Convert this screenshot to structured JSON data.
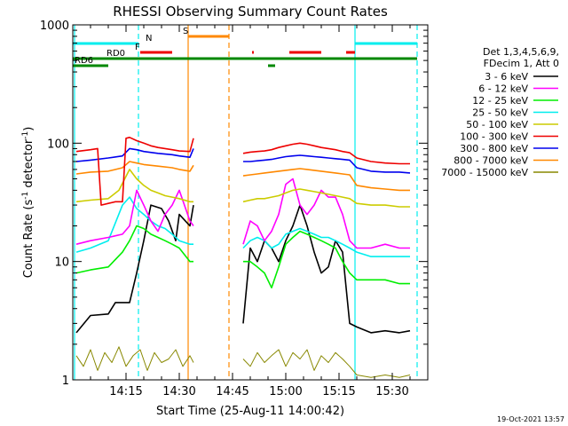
{
  "chart_data": {
    "type": "line",
    "title": "RHESSI Observing Summary Count Rates",
    "xlabel": "Start Time (25-Aug-11 14:00:42)",
    "ylabel_main": "Count Rate (s",
    "ylabel_sup1": "-1",
    "ylabel_mid": " detector",
    "ylabel_sup2": "-1",
    "ylabel_end": ")",
    "yscale": "log",
    "ylim": [
      1,
      1000
    ],
    "xlim_minutes": [
      0,
      100
    ],
    "x_ticks": [
      {
        "m": 15,
        "label": "14:15"
      },
      {
        "m": 30,
        "label": "14:30"
      },
      {
        "m": 45,
        "label": "14:45"
      },
      {
        "m": 60,
        "label": "15:00"
      },
      {
        "m": 75,
        "label": "15:15"
      },
      {
        "m": 90,
        "label": "15:30"
      }
    ],
    "y_ticks": [
      {
        "v": 1,
        "label": "1"
      },
      {
        "v": 10,
        "label": "10"
      },
      {
        "v": 100,
        "label": "100"
      },
      {
        "v": 1000,
        "label": "1000"
      }
    ],
    "legend_header": [
      "Det 1,3,4,5,6,9,",
      "FDecim 1, Att 0"
    ],
    "legend": [
      {
        "name": "3 - 6 keV",
        "color": "#000000"
      },
      {
        "name": "6 - 12 keV",
        "color": "#ff00ff"
      },
      {
        "name": "12 - 25 keV",
        "color": "#00ee00"
      },
      {
        "name": "25 - 50 keV",
        "color": "#00eeee"
      },
      {
        "name": "50 - 100 keV",
        "color": "#cccc00"
      },
      {
        "name": "100 - 300 keV",
        "color": "#ee0000"
      },
      {
        "name": "300 - 800 keV",
        "color": "#0000ee"
      },
      {
        "name": "800 - 7000 keV",
        "color": "#ff8800"
      },
      {
        "name": "7000 - 15000 keV",
        "color": "#888800"
      }
    ],
    "data_gaps_minutes": [
      [
        35,
        47
      ]
    ],
    "series": [
      {
        "name": "3 - 6 keV",
        "segments": [
          {
            "x": [
              1,
              5,
              10,
              12,
              16,
              18,
              20,
              22,
              25,
              27,
              29,
              30,
              33,
              34
            ],
            "y": [
              2.5,
              3.5,
              3.6,
              4.5,
              4.5,
              8,
              15,
              30,
              28,
              22,
              15,
              25,
              20,
              30
            ]
          },
          {
            "x": [
              48,
              50,
              52,
              54,
              56,
              58,
              60,
              62,
              64,
              66,
              68,
              70,
              72,
              74,
              76,
              78,
              80,
              84,
              88,
              92,
              95
            ],
            "y": [
              3,
              13,
              10,
              15,
              13,
              10,
              15,
              20,
              30,
              20,
              12,
              8,
              9,
              15,
              12,
              3,
              2.8,
              2.5,
              2.6,
              2.5,
              2.6
            ]
          }
        ]
      },
      {
        "name": "6 - 12 keV",
        "segments": [
          {
            "x": [
              1,
              5,
              10,
              14,
              16,
              18,
              20,
              22,
              24,
              26,
              28,
              30,
              33,
              34
            ],
            "y": [
              14,
              15,
              16,
              17,
              20,
              40,
              30,
              22,
              18,
              25,
              30,
              40,
              22,
              20
            ]
          },
          {
            "x": [
              48,
              50,
              52,
              54,
              56,
              58,
              60,
              62,
              64,
              66,
              68,
              70,
              72,
              74,
              76,
              78,
              80,
              84,
              88,
              92,
              95
            ],
            "y": [
              14,
              22,
              20,
              15,
              18,
              25,
              45,
              50,
              30,
              25,
              30,
              40,
              35,
              35,
              25,
              15,
              13,
              13,
              14,
              13,
              13
            ]
          }
        ]
      },
      {
        "name": "12 - 25 keV",
        "segments": [
          {
            "x": [
              1,
              5,
              10,
              14,
              16,
              18,
              20,
              22,
              24,
              26,
              28,
              30,
              33,
              34
            ],
            "y": [
              8,
              8.5,
              9,
              12,
              15,
              20,
              19,
              17,
              16,
              15,
              14,
              13,
              10,
              10
            ]
          },
          {
            "x": [
              48,
              50,
              52,
              54,
              56,
              58,
              60,
              62,
              64,
              66,
              68,
              70,
              72,
              74,
              76,
              78,
              80,
              84,
              88,
              92,
              95
            ],
            "y": [
              10,
              10,
              9,
              8,
              6,
              9,
              14,
              16,
              18,
              17,
              16,
              15,
              14,
              13,
              10,
              8,
              7,
              7,
              7,
              6.5,
              6.5
            ]
          }
        ]
      },
      {
        "name": "25 - 50 keV",
        "segments": [
          {
            "x": [
              1,
              5,
              10,
              14,
              16,
              18,
              20,
              22,
              24,
              26,
              28,
              30,
              33,
              34
            ],
            "y": [
              12,
              13,
              15,
              30,
              35,
              28,
              25,
              22,
              20,
              19,
              17,
              15,
              14,
              14
            ]
          },
          {
            "x": [
              48,
              50,
              52,
              54,
              56,
              58,
              60,
              62,
              64,
              66,
              68,
              70,
              72,
              74,
              76,
              78,
              80,
              84,
              88,
              92,
              95
            ],
            "y": [
              13,
              15,
              16,
              15,
              13,
              14,
              17,
              18,
              19,
              18,
              17,
              16,
              16,
              15,
              14,
              13,
              12,
              11,
              11,
              11,
              11
            ]
          }
        ]
      },
      {
        "name": "50 - 100 keV",
        "segments": [
          {
            "x": [
              1,
              5,
              10,
              13,
              16,
              18,
              20,
              22,
              24,
              26,
              28,
              30,
              33,
              34
            ],
            "y": [
              32,
              33,
              34,
              40,
              60,
              50,
              44,
              40,
              38,
              36,
              35,
              34,
              32,
              32
            ]
          },
          {
            "x": [
              48,
              50,
              52,
              54,
              56,
              58,
              60,
              62,
              64,
              66,
              68,
              70,
              72,
              74,
              76,
              78,
              80,
              84,
              88,
              92,
              95
            ],
            "y": [
              32,
              33,
              34,
              34,
              35,
              36,
              38,
              40,
              41,
              40,
              39,
              38,
              37,
              36,
              35,
              34,
              31,
              30,
              30,
              29,
              29
            ]
          }
        ]
      },
      {
        "name": "100 - 300 keV",
        "segments": [
          {
            "x": [
              1,
              5,
              7,
              8,
              10,
              12,
              14,
              15,
              16,
              18,
              20,
              22,
              24,
              26,
              28,
              30,
              33,
              34
            ],
            "y": [
              85,
              88,
              90,
              30,
              31,
              32,
              32,
              110,
              112,
              105,
              100,
              95,
              92,
              90,
              88,
              86,
              85,
              110
            ]
          },
          {
            "x": [
              48,
              50,
              52,
              54,
              56,
              58,
              60,
              62,
              64,
              66,
              68,
              70,
              72,
              74,
              76,
              78,
              80,
              84,
              88,
              92,
              95
            ],
            "y": [
              82,
              84,
              85,
              86,
              88,
              92,
              95,
              98,
              100,
              98,
              95,
              92,
              90,
              88,
              85,
              83,
              75,
              70,
              68,
              67,
              67
            ]
          }
        ]
      },
      {
        "name": "300 - 800 keV",
        "segments": [
          {
            "x": [
              1,
              5,
              10,
              14,
              16,
              18,
              20,
              24,
              28,
              30,
              33,
              34
            ],
            "y": [
              70,
              72,
              75,
              78,
              90,
              88,
              85,
              82,
              80,
              78,
              76,
              90
            ]
          },
          {
            "x": [
              48,
              50,
              52,
              54,
              56,
              58,
              60,
              62,
              64,
              66,
              68,
              70,
              72,
              74,
              76,
              78,
              80,
              84,
              88,
              92,
              95
            ],
            "y": [
              70,
              70,
              71,
              72,
              73,
              75,
              77,
              78,
              79,
              78,
              77,
              76,
              75,
              74,
              73,
              72,
              62,
              58,
              57,
              57,
              56
            ]
          }
        ]
      },
      {
        "name": "800 - 7000 keV",
        "segments": [
          {
            "x": [
              1,
              5,
              10,
              14,
              16,
              18,
              20,
              24,
              28,
              30,
              33,
              34
            ],
            "y": [
              55,
              57,
              58,
              62,
              70,
              68,
              66,
              64,
              62,
              60,
              58,
              65
            ]
          },
          {
            "x": [
              48,
              50,
              52,
              54,
              56,
              58,
              60,
              62,
              64,
              66,
              68,
              70,
              72,
              74,
              76,
              78,
              80,
              84,
              88,
              92,
              95
            ],
            "y": [
              53,
              54,
              55,
              56,
              57,
              58,
              59,
              60,
              61,
              60,
              59,
              58,
              57,
              56,
              55,
              54,
              44,
              42,
              41,
              40,
              40
            ]
          }
        ]
      },
      {
        "name": "7000 - 15000 keV",
        "segments": [
          {
            "x": [
              1,
              3,
              5,
              7,
              9,
              11,
              13,
              15,
              17,
              19,
              21,
              23,
              25,
              27,
              29,
              31,
              33,
              34
            ],
            "y": [
              1.6,
              1.3,
              1.8,
              1.2,
              1.7,
              1.4,
              1.9,
              1.3,
              1.6,
              1.8,
              1.2,
              1.7,
              1.4,
              1.5,
              1.8,
              1.3,
              1.6,
              1.4
            ]
          },
          {
            "x": [
              48,
              50,
              52,
              54,
              56,
              58,
              60,
              62,
              64,
              66,
              68,
              70,
              72,
              74,
              76,
              78,
              80,
              84,
              88,
              92,
              95
            ],
            "y": [
              1.5,
              1.3,
              1.7,
              1.4,
              1.6,
              1.8,
              1.3,
              1.7,
              1.5,
              1.8,
              1.2,
              1.6,
              1.4,
              1.7,
              1.5,
              1.3,
              1.1,
              1.05,
              1.1,
              1.05,
              1.1
            ]
          }
        ]
      }
    ],
    "attenuator_boundaries_minutes": [
      {
        "m": 18.5,
        "color": "#00eeee",
        "style": "dashed"
      },
      {
        "m": 0.5,
        "color": "#00eeee",
        "style": "solid"
      },
      {
        "m": 32.5,
        "color": "#ff8800",
        "style": "solid"
      },
      {
        "m": 44,
        "color": "#ff8800",
        "style": "dashed"
      },
      {
        "m": 79.5,
        "color": "#00eeee",
        "style": "solid"
      },
      {
        "m": 97,
        "color": "#00eeee",
        "style": "dashed"
      }
    ],
    "flag_bars": [
      {
        "label": "",
        "color": "#00eeee",
        "ranges": [
          [
            0,
            18.5
          ],
          [
            79.5,
            97
          ]
        ],
        "row": 0
      },
      {
        "label": "N",
        "color": "#00eeee",
        "ranges": [],
        "row": 0,
        "label_m": 20
      },
      {
        "label": "S",
        "color": "#ff8800",
        "ranges": [
          [
            32.5,
            44
          ]
        ],
        "row": -1,
        "label_m": 30.5
      },
      {
        "label": "F",
        "color": "#ee0000",
        "ranges": [
          [
            19,
            28
          ],
          [
            50.5,
            51
          ],
          [
            61,
            70
          ],
          [
            77,
            79.5
          ]
        ],
        "row": 1,
        "label_m": 17
      },
      {
        "label": "RD0",
        "color": "#008800",
        "ranges": [
          [
            0,
            97
          ]
        ],
        "row": 2,
        "label_m": 9
      },
      {
        "label": "RD6",
        "color": "#008800",
        "ranges": [
          [
            0,
            10
          ],
          [
            55,
            57
          ]
        ],
        "row": 3,
        "label_m": 0
      }
    ],
    "footer_timestamp": "19-Oct-2021 13:57"
  }
}
